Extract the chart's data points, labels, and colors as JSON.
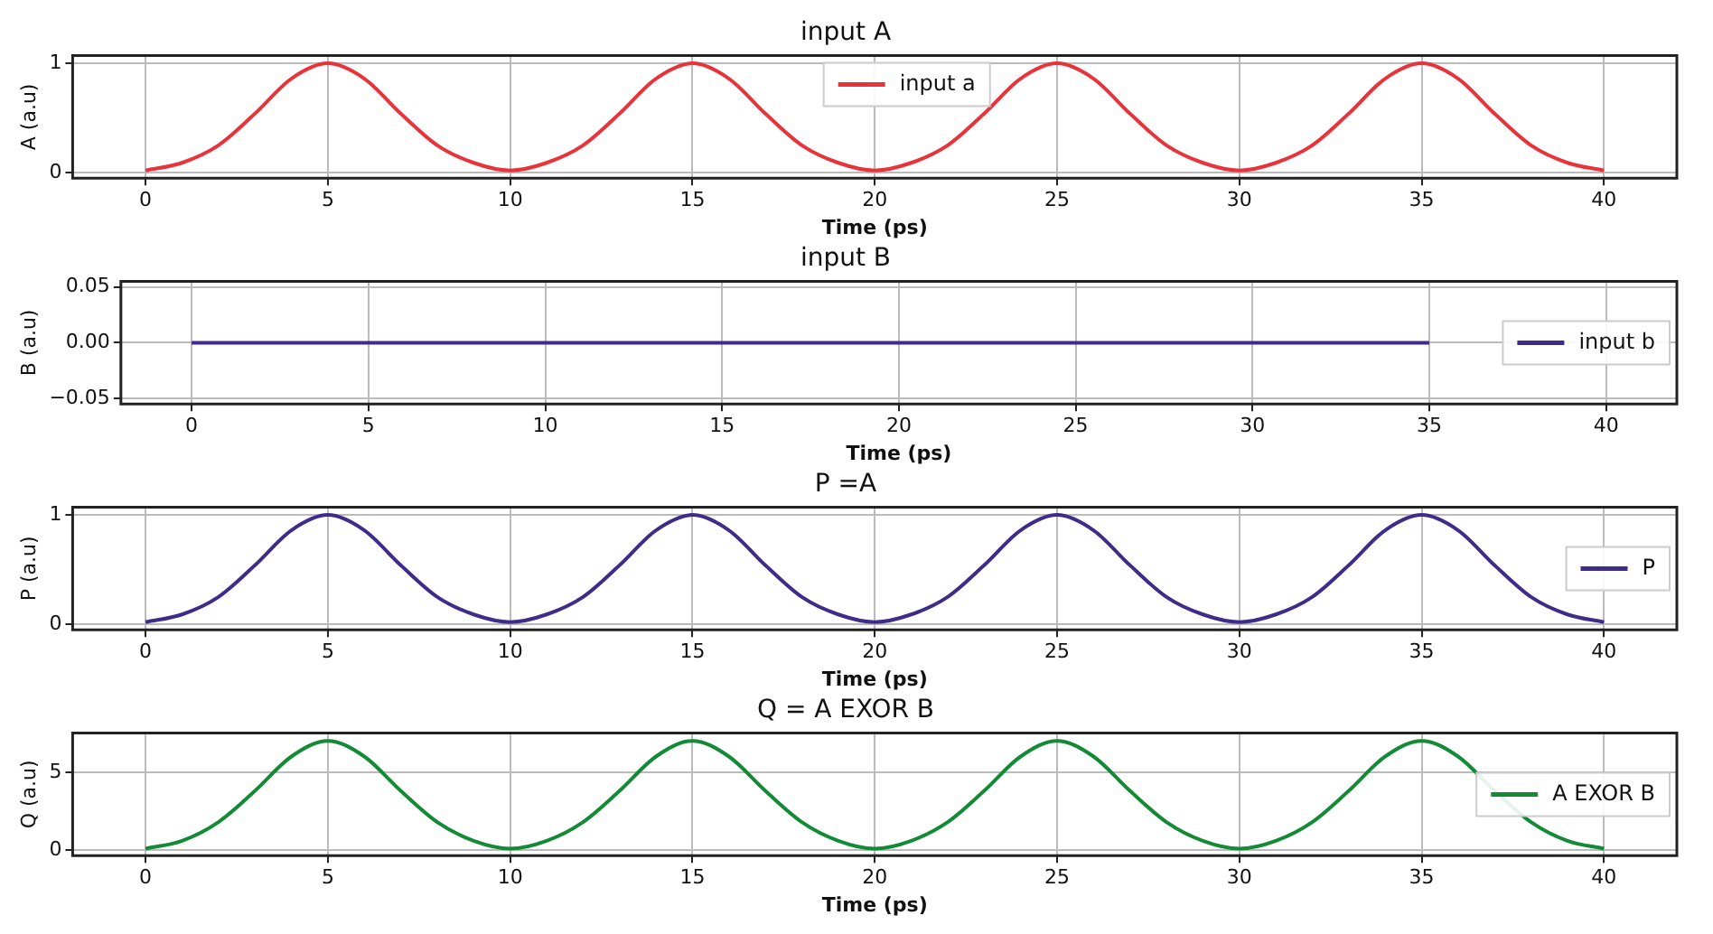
{
  "chart_data": [
    {
      "type": "line",
      "title": "input A",
      "xlabel": "Time (ps)",
      "ylabel": "A (a.u)",
      "x": [
        0,
        1,
        2,
        3,
        4,
        5,
        6,
        7,
        8,
        9,
        10,
        11,
        12,
        13,
        14,
        15,
        16,
        17,
        18,
        19,
        20,
        21,
        22,
        23,
        24,
        25,
        26,
        27,
        28,
        29,
        30,
        31,
        32,
        33,
        34,
        35,
        36,
        37,
        38,
        39,
        40
      ],
      "series": [
        {
          "name": "input a",
          "color": "#e8333a",
          "values": [
            0.02,
            0.09,
            0.25,
            0.54,
            0.86,
            1,
            0.86,
            0.54,
            0.25,
            0.09,
            0.02,
            0.09,
            0.25,
            0.54,
            0.86,
            1,
            0.86,
            0.54,
            0.25,
            0.09,
            0.02,
            0.09,
            0.25,
            0.54,
            0.86,
            1,
            0.86,
            0.54,
            0.25,
            0.09,
            0.02,
            0.09,
            0.25,
            0.54,
            0.86,
            1,
            0.86,
            0.54,
            0.25,
            0.09,
            0.02
          ]
        }
      ],
      "xlim": [
        -2,
        42
      ],
      "xticks": [
        0,
        5,
        10,
        15,
        20,
        25,
        30,
        35,
        40
      ],
      "ylim": [
        -0.05,
        1.07
      ],
      "yticks": [
        0,
        1
      ],
      "grid": true,
      "legend": "top",
      "marker": "none",
      "line_style": "solid"
    },
    {
      "type": "line",
      "title": "input B",
      "xlabel": "Time (ps)",
      "ylabel": "B (a.u)",
      "x": [
        0,
        5,
        10,
        15,
        20,
        25,
        30,
        35
      ],
      "series": [
        {
          "name": "input b",
          "color": "#3f2b8a",
          "values": [
            0,
            0,
            0,
            0,
            0,
            0,
            0,
            0
          ]
        }
      ],
      "xlim": [
        -2,
        42
      ],
      "xticks": [
        0,
        5,
        10,
        15,
        20,
        25,
        30,
        35,
        40
      ],
      "ylim": [
        -0.055,
        0.055
      ],
      "yticks": [
        {
          "value": -0.05,
          "label": "−0.05"
        },
        {
          "value": 0,
          "label": "0.00"
        },
        {
          "value": 0.05,
          "label": "0.05"
        }
      ],
      "grid": true,
      "legend": "right",
      "marker": "none",
      "line_style": "solid"
    },
    {
      "type": "line",
      "title": "P =A",
      "xlabel": "Time (ps)",
      "ylabel": "P (a.u)",
      "x": [
        0,
        1,
        2,
        3,
        4,
        5,
        6,
        7,
        8,
        9,
        10,
        11,
        12,
        13,
        14,
        15,
        16,
        17,
        18,
        19,
        20,
        21,
        22,
        23,
        24,
        25,
        26,
        27,
        28,
        29,
        30,
        31,
        32,
        33,
        34,
        35,
        36,
        37,
        38,
        39,
        40
      ],
      "series": [
        {
          "name": "P",
          "color": "#3f2b8a",
          "values": [
            0.02,
            0.09,
            0.25,
            0.54,
            0.86,
            1,
            0.86,
            0.54,
            0.25,
            0.09,
            0.02,
            0.09,
            0.25,
            0.54,
            0.86,
            1,
            0.86,
            0.54,
            0.25,
            0.09,
            0.02,
            0.09,
            0.25,
            0.54,
            0.86,
            1,
            0.86,
            0.54,
            0.25,
            0.09,
            0.02,
            0.09,
            0.25,
            0.54,
            0.86,
            1,
            0.86,
            0.54,
            0.25,
            0.09,
            0.02
          ]
        }
      ],
      "xlim": [
        -2,
        42
      ],
      "xticks": [
        0,
        5,
        10,
        15,
        20,
        25,
        30,
        35,
        40
      ],
      "ylim": [
        -0.05,
        1.07
      ],
      "yticks": [
        0,
        1
      ],
      "grid": true,
      "legend": "right",
      "marker": "none",
      "line_style": "solid"
    },
    {
      "type": "line",
      "title": "Q = A EXOR B",
      "xlabel": "Time (ps)",
      "ylabel": "Q (a.u)",
      "x": [
        0,
        1,
        2,
        3,
        4,
        5,
        6,
        7,
        8,
        9,
        10,
        11,
        12,
        13,
        14,
        15,
        16,
        17,
        18,
        19,
        20,
        21,
        22,
        23,
        24,
        25,
        26,
        27,
        28,
        29,
        30,
        31,
        32,
        33,
        34,
        35,
        36,
        37,
        38,
        39,
        40
      ],
      "series": [
        {
          "name": "A EXOR B",
          "color": "#138a36",
          "values": [
            0.1,
            0.6,
            1.8,
            3.8,
            6,
            7,
            6,
            3.8,
            1.8,
            0.6,
            0.1,
            0.6,
            1.8,
            3.8,
            6,
            7,
            6,
            3.8,
            1.8,
            0.6,
            0.1,
            0.6,
            1.8,
            3.8,
            6,
            7,
            6,
            3.8,
            1.8,
            0.6,
            0.1,
            0.6,
            1.8,
            3.8,
            6,
            7,
            6,
            3.8,
            1.8,
            0.6,
            0.1
          ]
        }
      ],
      "xlim": [
        -2,
        42
      ],
      "xticks": [
        0,
        5,
        10,
        15,
        20,
        25,
        30,
        35,
        40
      ],
      "ylim": [
        -0.35,
        7.5
      ],
      "yticks": [
        0,
        5
      ],
      "grid": true,
      "legend": "right",
      "marker": "none",
      "line_style": "solid"
    }
  ]
}
